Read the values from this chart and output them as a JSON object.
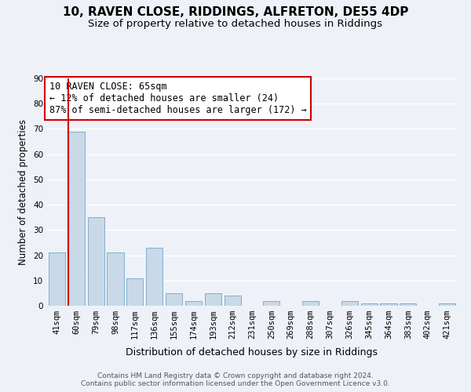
{
  "title": "10, RAVEN CLOSE, RIDDINGS, ALFRETON, DE55 4DP",
  "subtitle": "Size of property relative to detached houses in Riddings",
  "xlabel": "Distribution of detached houses by size in Riddings",
  "ylabel": "Number of detached properties",
  "categories": [
    "41sqm",
    "60sqm",
    "79sqm",
    "98sqm",
    "117sqm",
    "136sqm",
    "155sqm",
    "174sqm",
    "193sqm",
    "212sqm",
    "231sqm",
    "250sqm",
    "269sqm",
    "288sqm",
    "307sqm",
    "326sqm",
    "345sqm",
    "364sqm",
    "383sqm",
    "402sqm",
    "421sqm"
  ],
  "values": [
    21,
    69,
    35,
    21,
    11,
    23,
    5,
    2,
    5,
    4,
    0,
    2,
    0,
    2,
    0,
    2,
    1,
    1,
    1,
    0,
    1
  ],
  "bar_color": "#c9d9e8",
  "bar_edge_color": "#7fafd0",
  "background_color": "#eef2f8",
  "grid_color": "#ffffff",
  "annotation_box_text": "10 RAVEN CLOSE: 65sqm\n← 12% of detached houses are smaller (24)\n87% of semi-detached houses are larger (172) →",
  "annotation_box_color": "#ffffff",
  "annotation_box_edge_color": "#cc0000",
  "property_line_color": "#cc0000",
  "ylim": [
    0,
    90
  ],
  "yticks": [
    0,
    10,
    20,
    30,
    40,
    50,
    60,
    70,
    80,
    90
  ],
  "footer_text": "Contains HM Land Registry data © Crown copyright and database right 2024.\nContains public sector information licensed under the Open Government Licence v3.0.",
  "title_fontsize": 11,
  "subtitle_fontsize": 9.5,
  "xlabel_fontsize": 9,
  "ylabel_fontsize": 8.5,
  "tick_fontsize": 7.5,
  "annotation_fontsize": 8.5,
  "footer_fontsize": 6.5
}
